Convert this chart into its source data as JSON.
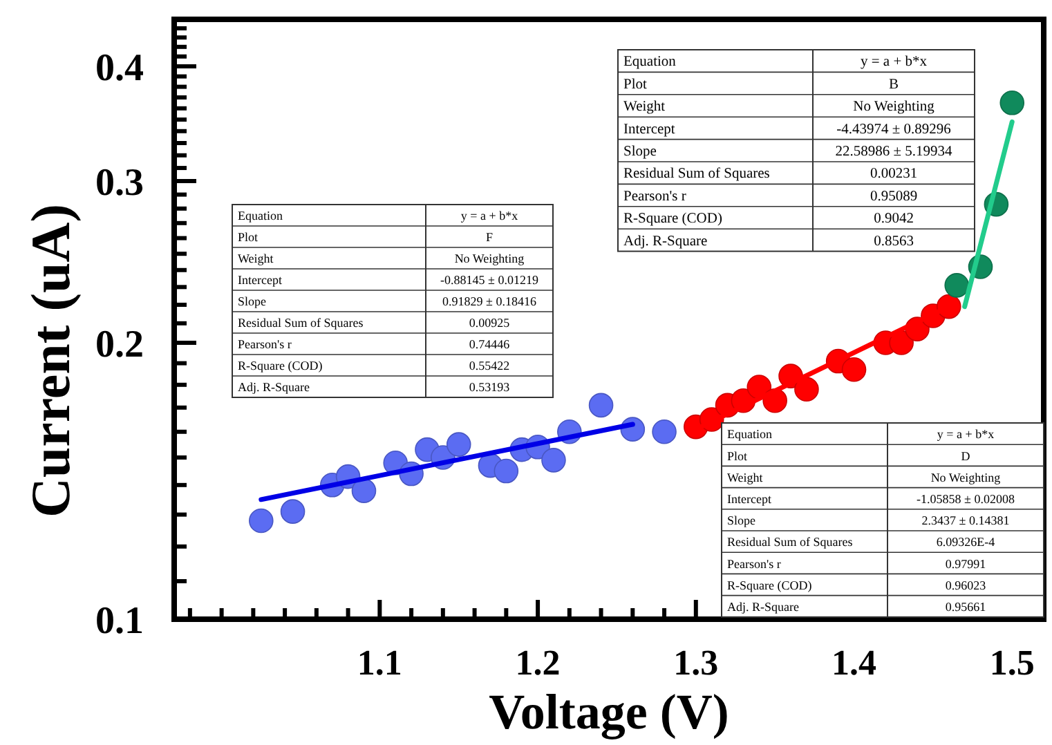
{
  "chart_data": {
    "type": "scatter",
    "xlabel": "Voltage (V)",
    "ylabel": "Current (uA)",
    "log": "y",
    "grid": false,
    "marker": "circle",
    "xlim": [
      0.97,
      1.52
    ],
    "ylim": [
      0.1,
      0.45
    ],
    "xticks": [
      {
        "value": 0.98,
        "label": null
      },
      {
        "value": 1.0,
        "label": null
      },
      {
        "value": 1.02,
        "label": null
      },
      {
        "value": 1.04,
        "label": null
      },
      {
        "value": 1.06,
        "label": null
      },
      {
        "value": 1.08,
        "label": null
      },
      1.1,
      {
        "value": 1.12,
        "label": null
      },
      {
        "value": 1.14,
        "label": null
      },
      {
        "value": 1.16,
        "label": null
      },
      {
        "value": 1.18,
        "label": null
      },
      1.2,
      {
        "value": 1.22,
        "label": null
      },
      {
        "value": 1.24,
        "label": null
      },
      {
        "value": 1.26,
        "label": null
      },
      {
        "value": 1.28,
        "label": null
      },
      1.3,
      1.4,
      1.5
    ],
    "yticks": [
      0.1,
      {
        "value": 0.11,
        "label": null
      },
      {
        "value": 0.12,
        "label": null
      },
      {
        "value": 0.13,
        "label": null
      },
      {
        "value": 0.14,
        "label": null
      },
      {
        "value": 0.15,
        "label": null
      },
      {
        "value": 0.16,
        "label": null
      },
      {
        "value": 0.17,
        "label": null
      },
      {
        "value": 0.18,
        "label": null
      },
      {
        "value": 0.19,
        "label": null
      },
      0.2,
      {
        "value": 0.21,
        "label": null
      },
      {
        "value": 0.22,
        "label": null
      },
      {
        "value": 0.23,
        "label": null
      },
      {
        "value": 0.24,
        "label": null
      },
      {
        "value": 0.25,
        "label": null
      },
      {
        "value": 0.26,
        "label": null
      },
      {
        "value": 0.27,
        "label": null
      },
      {
        "value": 0.28,
        "label": null
      },
      {
        "value": 0.29,
        "label": null
      },
      0.3,
      {
        "value": 0.31,
        "label": null
      },
      {
        "value": 0.32,
        "label": null
      },
      {
        "value": 0.33,
        "label": null
      },
      {
        "value": 0.34,
        "label": null
      },
      {
        "value": 0.35,
        "label": null
      },
      {
        "value": 0.36,
        "label": null
      },
      {
        "value": 0.37,
        "label": null
      },
      {
        "value": 0.38,
        "label": null
      },
      {
        "value": 0.39,
        "label": null
      },
      0.4,
      {
        "value": 0.41,
        "label": null
      },
      {
        "value": 0.42,
        "label": null
      },
      {
        "value": 0.43,
        "label": null
      },
      {
        "value": 0.44,
        "label": null
      },
      {
        "value": 0.45,
        "label": null
      }
    ],
    "series": [
      {
        "color": "#5b6cf2",
        "x": [
          1.025,
          1.045,
          1.07,
          1.08,
          1.09,
          1.11,
          1.12,
          1.13,
          1.14,
          1.15,
          1.17,
          1.18,
          1.19,
          1.2,
          1.21,
          1.22,
          1.24,
          1.26,
          1.28
        ],
        "values": [
          0.128,
          0.131,
          0.14,
          0.143,
          0.138,
          0.148,
          0.144,
          0.153,
          0.15,
          0.155,
          0.147,
          0.145,
          0.153,
          0.154,
          0.149,
          0.16,
          0.171,
          0.161,
          0.16
        ]
      },
      {
        "type": "line",
        "marker": "none",
        "color": "#0000e6",
        "x": [
          1.025,
          1.26
        ],
        "values": [
          0.135,
          0.163
        ]
      },
      {
        "color": "#ff0000",
        "x": [
          1.3,
          1.31,
          1.32,
          1.33,
          1.34,
          1.35,
          1.36,
          1.37,
          1.39,
          1.4,
          1.42,
          1.43,
          1.44,
          1.45,
          1.46
        ],
        "values": [
          0.162,
          0.165,
          0.171,
          0.173,
          0.179,
          0.173,
          0.184,
          0.178,
          0.191,
          0.187,
          0.2,
          0.2,
          0.207,
          0.214,
          0.219
        ]
      },
      {
        "type": "line",
        "marker": "none",
        "color": "#ff0000",
        "x": [
          1.3,
          1.46
        ],
        "values": [
          0.161,
          0.219
        ]
      },
      {
        "color": "#108a5c",
        "x": [
          1.465,
          1.48,
          1.49,
          1.5
        ],
        "values": [
          0.231,
          0.242,
          0.283,
          0.365
        ]
      },
      {
        "type": "line",
        "marker": "none",
        "color": "#22cc8c",
        "x": [
          1.47,
          1.5
        ],
        "values": [
          0.219,
          0.348
        ]
      }
    ],
    "annotations": [
      "Equation",
      "y = a + b*x",
      "Plot",
      "F",
      "Weight",
      "No Weighting",
      "Intercept",
      "-0.88145 ± 0.01219",
      "Slope",
      "0.91829 ± 0.18416",
      "Residual Sum of Squares",
      "0.00925",
      "Pearson's r",
      "0.74446",
      "R-Square (COD)",
      "0.55422",
      "Adj. R-Square",
      "0.53193",
      "Equation",
      "y = a + b*x",
      "Plot",
      "B",
      "Weight",
      "No Weighting",
      "Intercept",
      "-4.43974 ± 0.89296",
      "Slope",
      "22.58986 ± 5.19934",
      "Residual Sum of Squares",
      "0.00231",
      "Pearson's r",
      "0.95089",
      "R-Square (COD)",
      "0.9042",
      "Adj. R-Square",
      "0.8563",
      "Equation",
      "y = a + b*x",
      "Plot",
      "D",
      "Weight",
      "No Weighting",
      "Intercept",
      "-1.05858 ± 0.02008",
      "Slope",
      "2.3437 ± 0.14381",
      "Residual Sum of Squares",
      "6.09326E-4",
      "Pearson's r",
      "0.97991",
      "R-Square (COD)",
      "0.96023",
      "Adj. R-Square",
      "0.95661"
    ]
  }
}
